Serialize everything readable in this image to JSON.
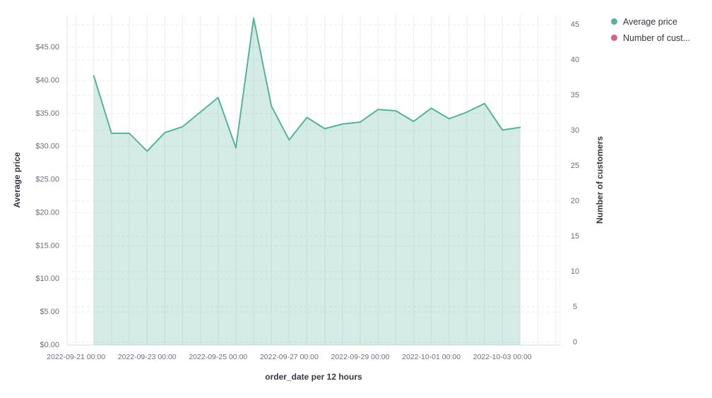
{
  "legend": {
    "items": [
      {
        "label": "Average price",
        "color": "#54B399"
      },
      {
        "label": "Number of cust...",
        "color": "#D36086"
      }
    ]
  },
  "axes": {
    "left": {
      "title": "Average price",
      "tick_labels": [
        "$0.00",
        "$5.00",
        "$10.00",
        "$15.00",
        "$20.00",
        "$25.00",
        "$30.00",
        "$35.00",
        "$40.00",
        "$45.00"
      ]
    },
    "right": {
      "title": "Number of customers",
      "tick_labels": [
        "0",
        "5",
        "10",
        "15",
        "20",
        "25",
        "30",
        "35",
        "40",
        "45"
      ]
    },
    "bottom": {
      "title": "order_date per 12 hours",
      "tick_labels": [
        "2022-09-21 00:00",
        "2022-09-23 00:00",
        "2022-09-25 00:00",
        "2022-09-27 00:00",
        "2022-09-29 00:00",
        "2022-10-01 00:00",
        "2022-10-03 00:00"
      ]
    }
  },
  "chart_data": {
    "type": "area",
    "title": "",
    "xlabel": "order_date per 12 hours",
    "x_interval": "12h",
    "x": [
      "2022-09-21 12:00",
      "2022-09-22 00:00",
      "2022-09-22 12:00",
      "2022-09-23 00:00",
      "2022-09-23 12:00",
      "2022-09-24 00:00",
      "2022-09-24 12:00",
      "2022-09-25 00:00",
      "2022-09-25 12:00",
      "2022-09-26 00:00",
      "2022-09-26 12:00",
      "2022-09-27 00:00",
      "2022-09-27 12:00",
      "2022-09-28 00:00",
      "2022-09-28 12:00",
      "2022-09-29 00:00",
      "2022-09-29 12:00",
      "2022-09-30 00:00",
      "2022-09-30 12:00",
      "2022-10-01 00:00",
      "2022-10-01 12:00",
      "2022-10-02 00:00",
      "2022-10-02 12:00",
      "2022-10-03 00:00",
      "2022-10-03 12:00"
    ],
    "series": [
      {
        "name": "Average price",
        "axis": "left",
        "color": "#54B399",
        "fill_opacity": 0.25,
        "values": [
          40.7,
          32.0,
          32.0,
          29.3,
          32.1,
          33.0,
          35.2,
          37.4,
          29.8,
          49.4,
          36.1,
          31.0,
          34.4,
          32.7,
          33.4,
          33.7,
          35.6,
          35.4,
          33.8,
          35.8,
          34.2,
          35.2,
          36.5,
          32.5,
          32.9
        ]
      },
      {
        "name": "Number of customers",
        "axis": "right",
        "color": "#D36086",
        "values": []
      }
    ],
    "ylabel_left": "Average price",
    "ylabel_right": "Number of customers",
    "ylim_left": [
      0,
      50
    ],
    "ylim_right": [
      0,
      45
    ],
    "grid": "horizontal dashed (both axes), vertical solid every 12h",
    "legend_position": "top-right"
  }
}
